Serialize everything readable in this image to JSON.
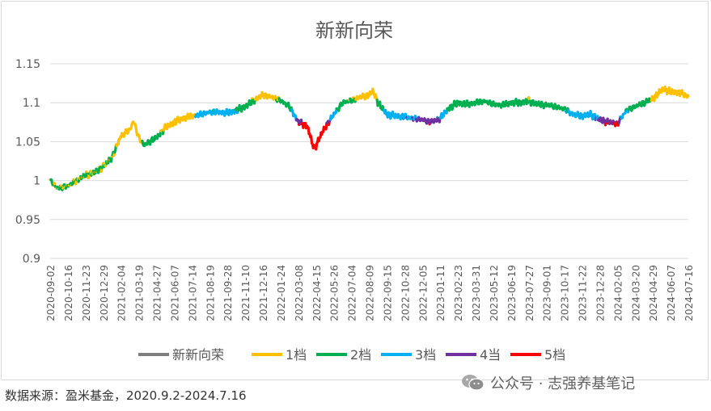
{
  "chart_data": {
    "type": "line",
    "title": "新新向荣",
    "ylim": [
      0.9,
      1.15
    ],
    "y_ticks": [
      "1.15",
      "1.1",
      "1.05",
      "1",
      "0.95",
      "0.9"
    ],
    "grid": "horizontal",
    "legend_position": "bottom",
    "x_tick_labels": [
      "2020-09-02",
      "2020-10-16",
      "2020-11-23",
      "2020-12-29",
      "2021-02-04",
      "2021-03-19",
      "2021-04-27",
      "2021-06-07",
      "2021-07-14",
      "2021-08-19",
      "2021-09-28",
      "2021-11-10",
      "2021-12-16",
      "2022-01-24",
      "2022-03-08",
      "2022-04-15",
      "2022-05-26",
      "2022-07-04",
      "2022-08-09",
      "2022-09-15",
      "2022-10-28",
      "2022-12-05",
      "2023-01-11",
      "2023-02-23",
      "2023-03-31",
      "2023-05-12",
      "2023-06-19",
      "2023-07-27",
      "2023-09-01",
      "2023-10-17",
      "2023-11-22",
      "2023-12-28",
      "2024-02-05",
      "2024-03-20",
      "2024-04-29",
      "2024-06-07",
      "2024-07-16"
    ],
    "anchors": [
      [
        0,
        1.0
      ],
      [
        0.4,
        0.99
      ],
      [
        1,
        0.993
      ],
      [
        1.5,
        1.0
      ],
      [
        2,
        1.007
      ],
      [
        2.5,
        1.01
      ],
      [
        3,
        1.018
      ],
      [
        3.5,
        1.03
      ],
      [
        4,
        1.058
      ],
      [
        4.5,
        1.065
      ],
      [
        4.7,
        1.077
      ],
      [
        5,
        1.055
      ],
      [
        5.3,
        1.045
      ],
      [
        5.6,
        1.05
      ],
      [
        6,
        1.055
      ],
      [
        6.5,
        1.068
      ],
      [
        7,
        1.075
      ],
      [
        7.5,
        1.08
      ],
      [
        8,
        1.083
      ],
      [
        8.5,
        1.085
      ],
      [
        9,
        1.088
      ],
      [
        9.5,
        1.088
      ],
      [
        10,
        1.087
      ],
      [
        10.5,
        1.09
      ],
      [
        11,
        1.095
      ],
      [
        11.5,
        1.103
      ],
      [
        12,
        1.11
      ],
      [
        12.5,
        1.107
      ],
      [
        13,
        1.103
      ],
      [
        13.5,
        1.095
      ],
      [
        14,
        1.075
      ],
      [
        14.5,
        1.07
      ],
      [
        14.9,
        1.04
      ],
      [
        15.3,
        1.06
      ],
      [
        15.7,
        1.075
      ],
      [
        16,
        1.085
      ],
      [
        16.5,
        1.1
      ],
      [
        17,
        1.103
      ],
      [
        17.5,
        1.107
      ],
      [
        18,
        1.11
      ],
      [
        18.2,
        1.115
      ],
      [
        18.5,
        1.1
      ],
      [
        19,
        1.085
      ],
      [
        19.5,
        1.083
      ],
      [
        20,
        1.082
      ],
      [
        20.5,
        1.08
      ],
      [
        21,
        1.078
      ],
      [
        21.5,
        1.075
      ],
      [
        22,
        1.08
      ],
      [
        22.5,
        1.093
      ],
      [
        23,
        1.1
      ],
      [
        23.5,
        1.098
      ],
      [
        24,
        1.1
      ],
      [
        24.5,
        1.102
      ],
      [
        25,
        1.098
      ],
      [
        25.5,
        1.097
      ],
      [
        26,
        1.1
      ],
      [
        26.5,
        1.1
      ],
      [
        27,
        1.102
      ],
      [
        27.5,
        1.098
      ],
      [
        28,
        1.097
      ],
      [
        28.5,
        1.095
      ],
      [
        29,
        1.092
      ],
      [
        29.5,
        1.085
      ],
      [
        30,
        1.083
      ],
      [
        30.5,
        1.085
      ],
      [
        31,
        1.078
      ],
      [
        31.5,
        1.075
      ],
      [
        32,
        1.073
      ],
      [
        32.5,
        1.09
      ],
      [
        33,
        1.095
      ],
      [
        33.5,
        1.1
      ],
      [
        34,
        1.105
      ],
      [
        34.3,
        1.112
      ],
      [
        34.6,
        1.118
      ],
      [
        35,
        1.114
      ],
      [
        35.5,
        1.113
      ],
      [
        36,
        1.108
      ]
    ],
    "series": [
      {
        "name": "新新向荣",
        "color": "#7f7f7f"
      },
      {
        "name": "1档",
        "color": "#ffc000"
      },
      {
        "name": "2档",
        "color": "#00b050"
      },
      {
        "name": "3档",
        "color": "#00b0f0"
      },
      {
        "name": "4当",
        "color": "#7030a0"
      },
      {
        "name": "5档",
        "color": "#ff0000"
      }
    ]
  },
  "footer": {
    "source": "数据来源：盈米基金，2020.9.2-2024.7.16",
    "watermark": "公众号 · 志强养基笔记",
    "watermark_icon": "wechat-icon"
  }
}
